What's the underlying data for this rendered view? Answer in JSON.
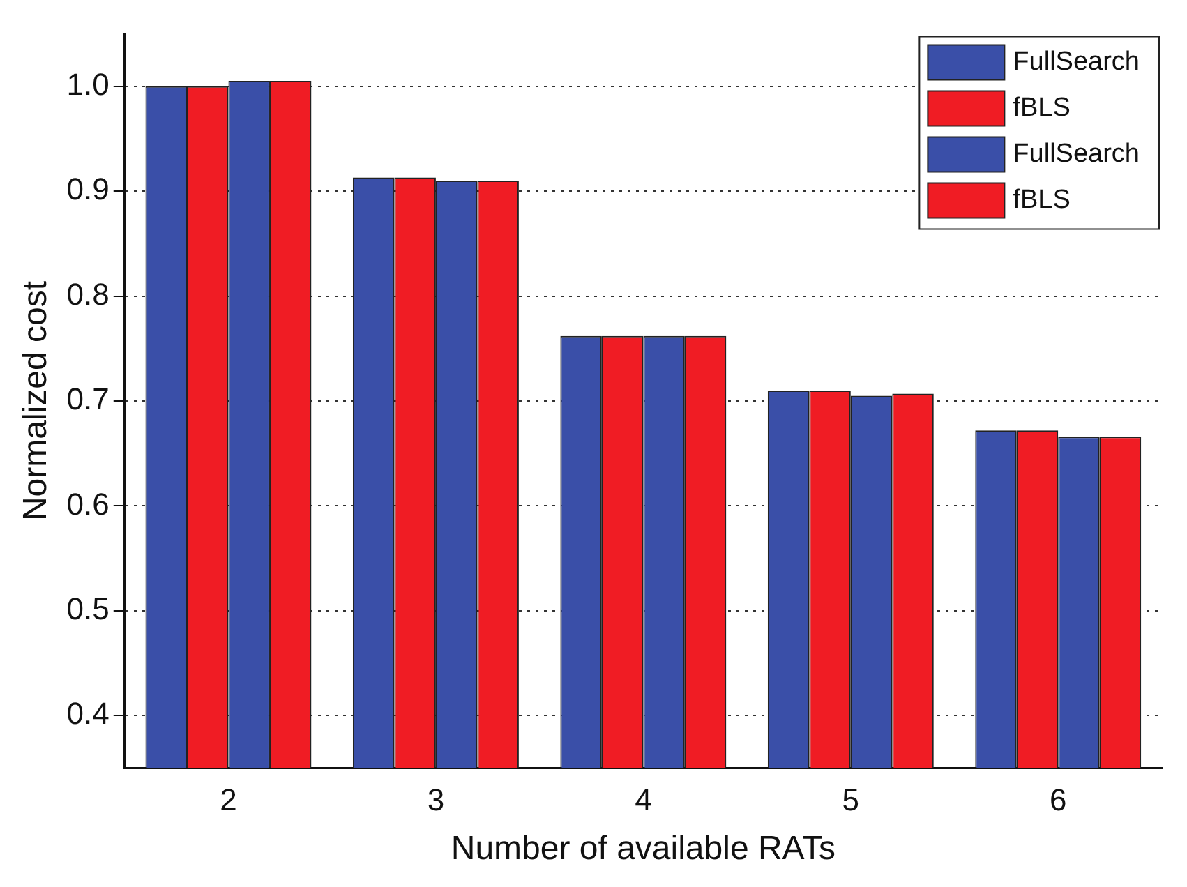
{
  "chart_data": {
    "type": "bar",
    "xlabel": "Number of available RATs",
    "ylabel": "Normalized cost",
    "categories": [
      "2",
      "3",
      "4",
      "5",
      "6"
    ],
    "series": [
      {
        "name": "FullSearch",
        "color": "#3a4fa8",
        "values": [
          1.0,
          0.913,
          0.762,
          0.71,
          0.672
        ]
      },
      {
        "name": "fBLS",
        "color": "#f01c24",
        "values": [
          1.0,
          0.913,
          0.762,
          0.71,
          0.672
        ]
      },
      {
        "name": "FullSearch",
        "color": "#3a4fa8",
        "values": [
          1.005,
          0.91,
          0.762,
          0.705,
          0.666
        ]
      },
      {
        "name": "fBLS",
        "color": "#f01c24",
        "values": [
          1.005,
          0.91,
          0.762,
          0.707,
          0.666
        ]
      }
    ],
    "ylim": [
      0.35,
      1.05
    ],
    "yticks": [
      0.4,
      0.5,
      0.6,
      0.7,
      0.8,
      0.9,
      {
        "value": 1.0,
        "label": "1.0"
      }
    ],
    "grid": "y",
    "legend": "top right"
  }
}
